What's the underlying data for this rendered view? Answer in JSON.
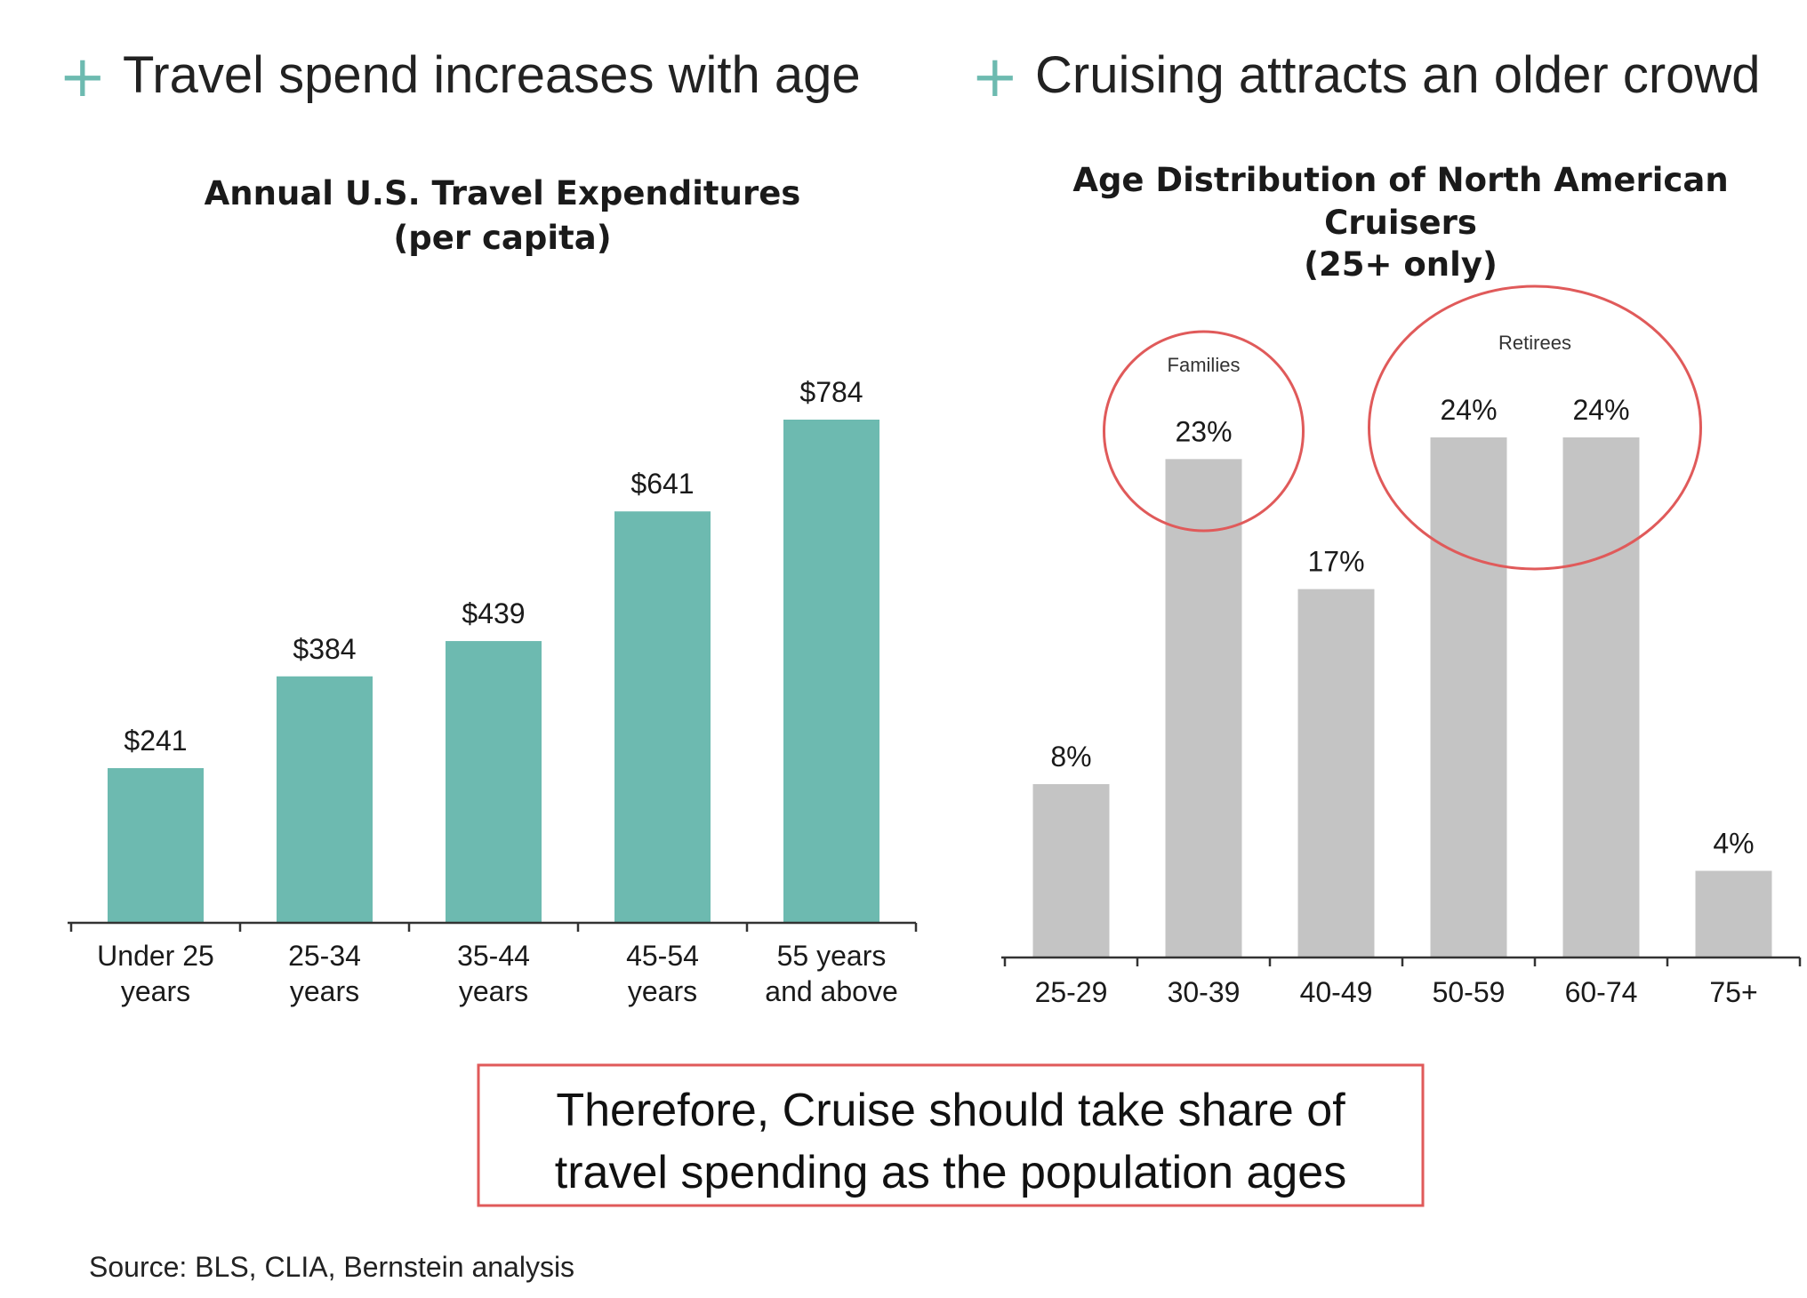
{
  "headlines": {
    "left": "Travel spend increases with age",
    "right": "Cruising attracts an older crowd"
  },
  "colors": {
    "plus": "#6dbab0",
    "bar_left": "#6dbab0",
    "bar_right": "#c4c4c4",
    "circle": "#e05a5a",
    "box": "#e05a5a"
  },
  "chart_data": [
    {
      "type": "bar",
      "title": [
        "Annual U.S. Travel Expenditures",
        "(per capita)"
      ],
      "categories": [
        [
          "Under 25",
          "years"
        ],
        [
          "25-34",
          "years"
        ],
        [
          "35-44",
          "years"
        ],
        [
          "45-54",
          "years"
        ],
        [
          "55 years",
          "and above"
        ]
      ],
      "values": [
        241,
        384,
        439,
        641,
        784
      ],
      "data_labels": [
        "$241",
        "$384",
        "$439",
        "$641",
        "$784"
      ],
      "ylim": [
        0,
        900
      ],
      "grid": false
    },
    {
      "type": "bar",
      "title": [
        "Age Distribution of North American",
        "Cruisers",
        "(25+ only)"
      ],
      "categories": [
        [
          "25-29"
        ],
        [
          "30-39"
        ],
        [
          "40-49"
        ],
        [
          "50-59"
        ],
        [
          "60-74"
        ],
        [
          "75+"
        ]
      ],
      "values": [
        8,
        23,
        17,
        24,
        24,
        4
      ],
      "data_labels": [
        "8%",
        "23%",
        "17%",
        "24%",
        "24%",
        "4%"
      ],
      "ylim": [
        0,
        30
      ],
      "grid": false,
      "annotations": [
        {
          "label": "Families",
          "categories": [
            "30-39"
          ]
        },
        {
          "label": "Retirees",
          "categories": [
            "50-59",
            "60-74"
          ]
        }
      ]
    }
  ],
  "conclusion": [
    "Therefore, Cruise should take share of",
    "travel spending as the population ages"
  ],
  "source": "Source: BLS, CLIA, Bernstein analysis"
}
